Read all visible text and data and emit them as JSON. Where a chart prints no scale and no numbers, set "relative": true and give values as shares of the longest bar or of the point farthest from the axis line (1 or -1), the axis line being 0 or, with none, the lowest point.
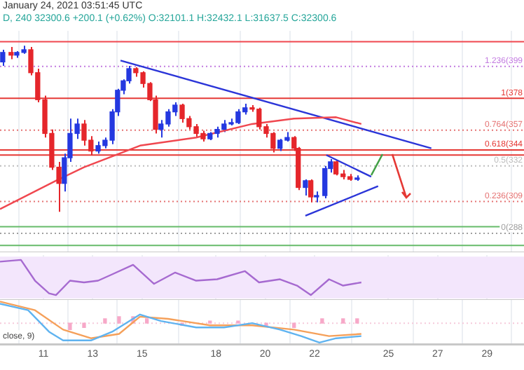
{
  "chart_data": [
    {
      "type": "candlestick",
      "title": "January 24, 2021 03:51:45 UTC",
      "subtitle": "D, 240 32300.6 +200.1 (+0.62%) O:32101.1 H:32432.1 L:31637.5 C:32300.6",
      "ylim": [
        -0.14,
        1.5
      ],
      "xlim": [
        9.24,
        30.5
      ],
      "xticks": [
        11,
        13,
        15,
        18,
        20,
        22,
        25,
        27,
        29
      ],
      "tick_labels": false,
      "grid": "x",
      "x": [
        9.35,
        9.69,
        9.92,
        10.21,
        10.49,
        10.77,
        11.06,
        11.34,
        11.63,
        11.85,
        12.08,
        12.37,
        12.65,
        12.93,
        13.22,
        13.5,
        13.79,
        14.01,
        14.24,
        14.47,
        14.75,
        15.04,
        15.32,
        15.55,
        15.77,
        16.06,
        16.34,
        16.63,
        16.91,
        17.2,
        17.48,
        17.76,
        18.05,
        18.33,
        18.62,
        18.9,
        19.18,
        19.47,
        19.75,
        20.04,
        20.32,
        20.6,
        20.89,
        21.17,
        21.34,
        21.63,
        21.85,
        22.08,
        22.42,
        22.65,
        22.87,
        23.16,
        23.44,
        23.73
      ],
      "ohlc": [
        [
          1.27,
          1.36,
          1.24,
          1.34
        ],
        [
          1.34,
          1.38,
          1.29,
          1.32
        ],
        [
          1.32,
          1.35,
          1.3,
          1.34
        ],
        [
          1.34,
          1.39,
          1.33,
          1.36
        ],
        [
          1.36,
          1.38,
          1.17,
          1.19
        ],
        [
          1.19,
          1.22,
          0.97,
          0.99
        ],
        [
          0.99,
          1.02,
          0.71,
          0.74
        ],
        [
          0.74,
          0.77,
          0.47,
          0.49
        ],
        [
          0.49,
          0.53,
          0.16,
          0.37
        ],
        [
          0.37,
          0.59,
          0.31,
          0.56
        ],
        [
          0.56,
          0.85,
          0.53,
          0.74
        ],
        [
          0.74,
          0.85,
          0.7,
          0.81
        ],
        [
          0.81,
          0.84,
          0.65,
          0.69
        ],
        [
          0.69,
          0.72,
          0.58,
          0.61
        ],
        [
          0.61,
          0.68,
          0.59,
          0.65
        ],
        [
          0.65,
          0.71,
          0.63,
          0.69
        ],
        [
          0.69,
          0.92,
          0.66,
          0.9
        ],
        [
          0.9,
          1.07,
          0.87,
          1.06
        ],
        [
          1.06,
          1.14,
          1.03,
          1.13
        ],
        [
          1.13,
          1.24,
          1.11,
          1.22
        ],
        [
          1.22,
          1.23,
          1.16,
          1.19
        ],
        [
          1.19,
          1.2,
          1.08,
          1.11
        ],
        [
          1.11,
          1.12,
          0.98,
          0.99
        ],
        [
          0.99,
          1.02,
          0.74,
          0.77
        ],
        [
          0.77,
          0.84,
          0.71,
          0.81
        ],
        [
          0.81,
          0.92,
          0.79,
          0.9
        ],
        [
          0.9,
          0.97,
          0.87,
          0.95
        ],
        [
          0.95,
          0.96,
          0.82,
          0.85
        ],
        [
          0.85,
          0.87,
          0.77,
          0.79
        ],
        [
          0.79,
          0.81,
          0.71,
          0.74
        ],
        [
          0.74,
          0.76,
          0.68,
          0.7
        ],
        [
          0.7,
          0.75,
          0.69,
          0.74
        ],
        [
          0.74,
          0.79,
          0.71,
          0.77
        ],
        [
          0.77,
          0.84,
          0.75,
          0.81
        ],
        [
          0.81,
          0.85,
          0.8,
          0.82
        ],
        [
          0.82,
          0.92,
          0.81,
          0.9
        ],
        [
          0.9,
          0.96,
          0.88,
          0.93
        ],
        [
          0.93,
          0.95,
          0.9,
          0.92
        ],
        [
          0.92,
          0.93,
          0.77,
          0.79
        ],
        [
          0.79,
          0.81,
          0.71,
          0.74
        ],
        [
          0.74,
          0.75,
          0.6,
          0.63
        ],
        [
          0.63,
          0.7,
          0.61,
          0.69
        ],
        [
          0.69,
          0.75,
          0.68,
          0.71
        ],
        [
          0.71,
          0.72,
          0.61,
          0.63
        ],
        [
          0.63,
          0.64,
          0.32,
          0.34
        ],
        [
          0.34,
          0.4,
          0.28,
          0.39
        ],
        [
          0.39,
          0.4,
          0.23,
          0.27
        ],
        [
          0.27,
          0.31,
          0.23,
          0.28
        ],
        [
          0.28,
          0.5,
          0.26,
          0.48
        ],
        [
          0.48,
          0.55,
          0.45,
          0.53
        ],
        [
          0.53,
          0.54,
          0.43,
          0.44
        ],
        [
          0.44,
          0.47,
          0.4,
          0.42
        ],
        [
          0.42,
          0.44,
          0.39,
          0.4
        ],
        [
          0.4,
          0.43,
          0.39,
          0.41
        ]
      ],
      "colors": [
        "#2438e0",
        "#e5262b",
        "#2438e0",
        "#2438e0",
        "#e5262b",
        "#e5262b",
        "#e5262b",
        "#e5262b",
        "#e5262b",
        "#2438e0",
        "#2438e0",
        "#2438e0",
        "#e5262b",
        "#e5262b",
        "#2438e0",
        "#2438e0",
        "#2438e0",
        "#2438e0",
        "#2438e0",
        "#2438e0",
        "#e5262b",
        "#e5262b",
        "#e5262b",
        "#e5262b",
        "#2438e0",
        "#2438e0",
        "#2438e0",
        "#e5262b",
        "#e5262b",
        "#e5262b",
        "#e5262b",
        "#2438e0",
        "#2438e0",
        "#2438e0",
        "#2438e0",
        "#2438e0",
        "#2438e0",
        "#e5262b",
        "#e5262b",
        "#e5262b",
        "#e5262b",
        "#2438e0",
        "#2438e0",
        "#e5262b",
        "#e5262b",
        "#2438e0",
        "#e5262b",
        "#2438e0",
        "#2438e0",
        "#2438e0",
        "#e5262b",
        "#e5262b",
        "#e5262b",
        "#2438e0"
      ],
      "series": [
        {
          "type": "line",
          "color": "#f0474f",
          "x": [
            9.24,
            11.51,
            12.65,
            14.92,
            17.2,
            19.47,
            21.17,
            22.88,
            23.9
          ],
          "values": [
            0.18,
            0.39,
            0.49,
            0.65,
            0.71,
            0.81,
            0.85,
            0.86,
            0.81
          ]
        },
        {
          "type": "line",
          "color": "#2b35d8",
          "x": [
            14.13,
            26.74
          ],
          "values": [
            1.28,
            0.63
          ]
        },
        {
          "type": "line",
          "color": "#2b35d8",
          "x": [
            22.48,
            24.3
          ],
          "values": [
            0.58,
            0.42
          ]
        },
        {
          "type": "line",
          "color": "#2b35d8",
          "x": [
            21.63,
            24.58
          ],
          "values": [
            0.13,
            0.35
          ]
        }
      ],
      "ref_lines": [
        {
          "axis": "y",
          "value": 1.42,
          "color": "#f0474f",
          "line_style": "solid"
        },
        {
          "axis": "y",
          "value": 1.236,
          "label": "1.236(399",
          "color": "#c27be0",
          "line_style": "dotted"
        },
        {
          "axis": "y",
          "value": 1,
          "label": "1(378",
          "color": "#e53935",
          "line_style": "solid"
        },
        {
          "axis": "y",
          "value": 0.764,
          "label": "0.764(357",
          "color": "#e57373",
          "line_style": "dotted"
        },
        {
          "axis": "y",
          "value": 0.618,
          "label": "0.618(344",
          "color": "#e53935",
          "line_style": "solid"
        },
        {
          "axis": "y",
          "value": 0.58,
          "color": "#e53935",
          "line_style": "solid"
        },
        {
          "axis": "y",
          "value": 0.5,
          "label": "0.5(332",
          "color": "#bdbdbd",
          "line_style": "dotted"
        },
        {
          "axis": "y",
          "value": 0.236,
          "label": "0.236(309",
          "color": "#e57373",
          "line_style": "dotted"
        },
        {
          "axis": "y",
          "value": 0.05,
          "color": "#66bb6a",
          "line_style": "solid"
        },
        {
          "axis": "y",
          "value": 0,
          "label": "0(288",
          "color": "#9e9e9e",
          "line_style": "dotted"
        },
        {
          "axis": "y",
          "value": -0.09,
          "color": "#66bb6a",
          "line_style": "solid"
        }
      ]
    },
    {
      "type": "line",
      "relative": true,
      "xlim": [
        9.24,
        30.5
      ],
      "xticks": [
        11,
        13,
        15,
        18,
        20,
        22,
        25,
        27,
        29
      ],
      "tick_labels": false,
      "grid": "x",
      "series": [
        {
          "color": "#a66ad0",
          "x": [
            9.24,
            10.09,
            10.66,
            11.23,
            11.51,
            12.08,
            12.65,
            13.22,
            13.79,
            14.64,
            15.49,
            16.34,
            17.2,
            18.05,
            19.18,
            19.75,
            20.6,
            21.29,
            21.85,
            22.59,
            23.16,
            23.9
          ],
          "values": [
            0.95,
            1.0,
            0.41,
            0.05,
            0,
            0.41,
            0.36,
            0.41,
            0.59,
            0.86,
            0.32,
            0.64,
            0.41,
            0.45,
            0.68,
            0.36,
            0.45,
            0.27,
            0,
            0.45,
            0.27,
            0.36
          ]
        }
      ],
      "bands": [
        {
          "axis": "y",
          "from": -0.09,
          "to": 1.09,
          "color": "#f3e6fc"
        }
      ]
    },
    {
      "type": "line",
      "relative": true,
      "xlim": [
        9.24,
        30.5
      ],
      "xticks": [
        11,
        13,
        15,
        18,
        20,
        22,
        25,
        27,
        29
      ],
      "tick_labels": "x",
      "grid": "x",
      "annotations": [
        "close, 9)"
      ],
      "ref_lines": [
        {
          "axis": "y",
          "value": 0,
          "color": "#f6c9da",
          "line_style": "dotted"
        }
      ],
      "series": [
        {
          "type": "bar",
          "color": "#f7a8c8",
          "x": [
            12.08,
            12.65,
            13.5,
            14.07,
            14.64,
            15.2,
            16.63,
            17.76,
            18.9,
            20.04,
            21.17,
            22.31,
            23.16,
            23.73
          ],
          "values": [
            -0.3,
            -0.2,
            0.2,
            0.3,
            0.3,
            0.2,
            -0.1,
            0.1,
            0.1,
            -0.1,
            -0.2,
            0.2,
            0.2,
            0.2
          ]
        },
        {
          "color": "#5fb3f0",
          "x": [
            9.24,
            10.38,
            11.23,
            11.8,
            12.93,
            13.79,
            14.92,
            15.77,
            17.2,
            18.33,
            19.47,
            20.6,
            21.46,
            22.2,
            22.88,
            23.9
          ],
          "values": [
            0.9,
            0.6,
            -0.4,
            -0.8,
            -0.8,
            -0.4,
            0.4,
            0.1,
            -0.2,
            -0.2,
            0,
            -0.3,
            -0.6,
            -0.9,
            -0.7,
            -0.6
          ]
        },
        {
          "color": "#f5a05a",
          "x": [
            9.24,
            10.66,
            11.8,
            12.93,
            14.07,
            14.92,
            16.06,
            17.76,
            19.47,
            21.17,
            22.59,
            23.9
          ],
          "values": [
            1.0,
            0.6,
            -0.3,
            -0.7,
            -0.5,
            0.3,
            0.2,
            -0.1,
            -0.1,
            -0.3,
            -0.6,
            -0.5
          ]
        }
      ]
    }
  ]
}
